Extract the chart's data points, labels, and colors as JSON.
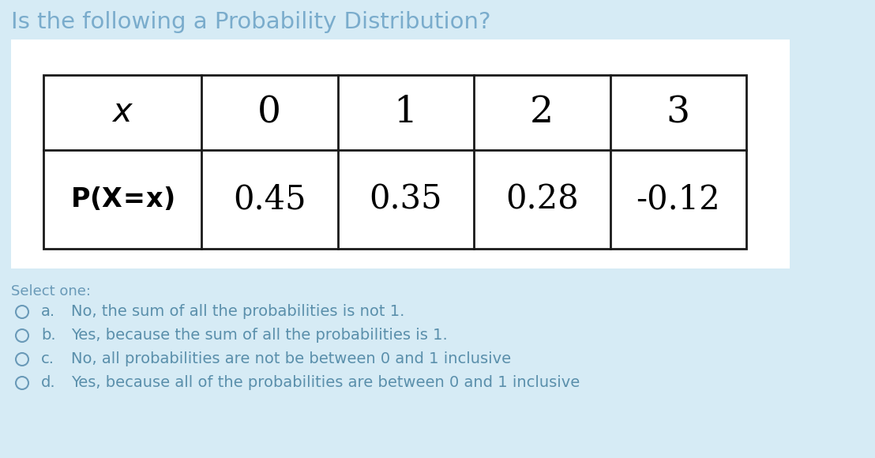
{
  "title": "Is the following a Probability Distribution?",
  "title_color": "#7aaccc",
  "background_color": "#d6ebf5",
  "white_panel_color": "#ffffff",
  "table_border_color": "#1a1a1a",
  "row1": [
    "x",
    "0",
    "1",
    "2",
    "3"
  ],
  "row2": [
    "P(X=x)",
    "0.45",
    "0.35",
    "0.28",
    "-0.12"
  ],
  "select_one_label": "Select one:",
  "select_one_color": "#6a9ab8",
  "options": [
    [
      "a.",
      "No, the sum of all the probabilities is not 1."
    ],
    [
      "b.",
      "Yes, because the sum of all the probabilities is 1."
    ],
    [
      "c.",
      "No, all probabilities are not be between 0 and 1 inclusive"
    ],
    [
      "d.",
      "Yes, because all of the probabilities are between 0 and 1 inclusive"
    ]
  ],
  "option_text_color": "#5a8fab",
  "option_letter_color": "#5a8fab",
  "circle_color": "#6a9ab8"
}
